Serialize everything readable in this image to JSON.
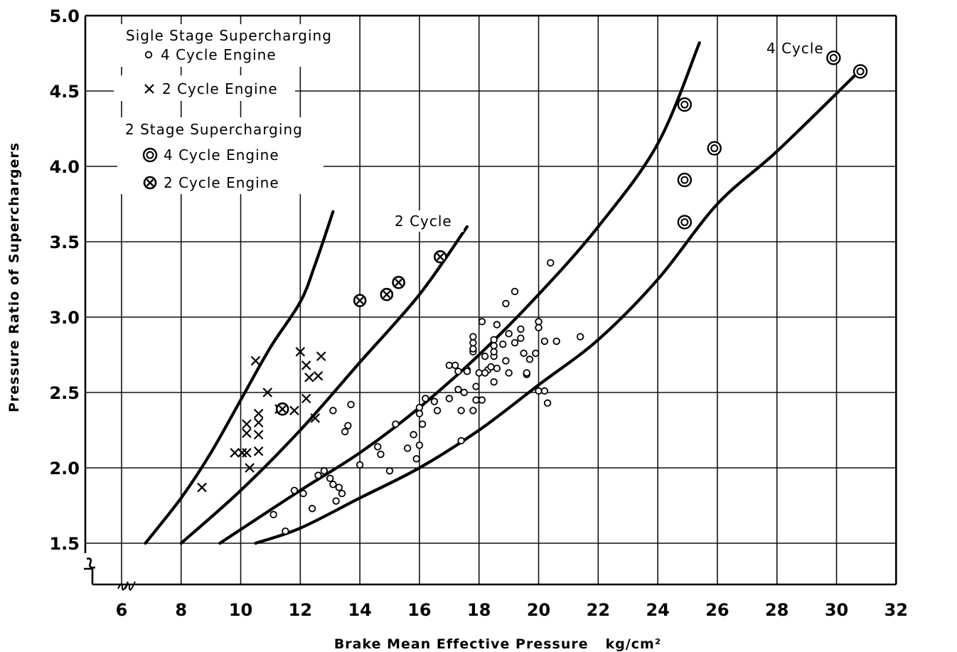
{
  "chart_data": {
    "type": "scatter",
    "xlabel": "Brake Mean Effective Pressure",
    "xunit": "kg/cm²",
    "ylabel": "Pressure Ratio of Superchargers",
    "xlim": [
      4,
      32
    ],
    "ylim": [
      1.2,
      5.0
    ],
    "x_ticks": [
      "6",
      "8",
      "10",
      "12",
      "14",
      "16",
      "18",
      "20",
      "22",
      "24",
      "26",
      "28",
      "30",
      "32"
    ],
    "y_ticks": [
      "1.5",
      "2.0",
      "2.5",
      "3.0",
      "3.5",
      "4.0",
      "4.5",
      "5.0"
    ],
    "grid": true,
    "axis_break": true,
    "legend": {
      "placement": "top-left",
      "title_single": "Sigle Stage Supercharging",
      "title_two": "2 Stage Supercharging",
      "entries": [
        {
          "marker": "circle",
          "label": "4 Cycle Engine"
        },
        {
          "marker": "cross",
          "label": "2 Cycle Engine"
        },
        {
          "marker": "double-circle",
          "label": "4 Cycle Engine"
        },
        {
          "marker": "circle-cross",
          "label": "2 Cycle Engine"
        }
      ]
    },
    "annotations": [
      {
        "text": "2 Cycle",
        "x": 14.8,
        "y": 3.6
      },
      {
        "text": "4 Cycle",
        "x": 26.8,
        "y": 4.8
      }
    ],
    "curves": [
      {
        "group": "2 Cycle",
        "points": [
          [
            6.8,
            1.5
          ],
          [
            8,
            1.8
          ],
          [
            9,
            2.1
          ],
          [
            10,
            2.45
          ],
          [
            11,
            2.8
          ],
          [
            12,
            3.1
          ],
          [
            12.5,
            3.35
          ],
          [
            13.1,
            3.7
          ]
        ]
      },
      {
        "group": "2 Cycle",
        "points": [
          [
            8,
            1.5
          ],
          [
            10,
            1.85
          ],
          [
            12,
            2.25
          ],
          [
            14,
            2.7
          ],
          [
            16,
            3.15
          ],
          [
            17.6,
            3.6
          ]
        ]
      },
      {
        "group": "4 Cycle",
        "points": [
          [
            9.3,
            1.5
          ],
          [
            12,
            1.85
          ],
          [
            14,
            2.1
          ],
          [
            16,
            2.4
          ],
          [
            18,
            2.75
          ],
          [
            20,
            3.15
          ],
          [
            22,
            3.6
          ],
          [
            24,
            4.15
          ],
          [
            25.4,
            4.82
          ]
        ]
      },
      {
        "group": "4 Cycle",
        "points": [
          [
            10.5,
            1.5
          ],
          [
            12,
            1.6
          ],
          [
            14,
            1.8
          ],
          [
            16,
            2.0
          ],
          [
            18,
            2.25
          ],
          [
            20,
            2.55
          ],
          [
            22,
            2.85
          ],
          [
            24,
            3.25
          ],
          [
            26,
            3.75
          ],
          [
            28,
            4.1
          ],
          [
            30.6,
            4.6
          ]
        ]
      }
    ],
    "series": [
      {
        "marker": "cross",
        "points": [
          [
            8.7,
            1.87
          ],
          [
            9.8,
            2.1
          ],
          [
            10.05,
            2.1
          ],
          [
            10.2,
            2.1
          ],
          [
            10.2,
            2.23
          ],
          [
            10.2,
            2.29
          ],
          [
            10.3,
            2.0
          ],
          [
            10.5,
            2.71
          ],
          [
            10.6,
            2.11
          ],
          [
            10.6,
            2.22
          ],
          [
            10.6,
            2.3
          ],
          [
            10.6,
            2.36
          ],
          [
            10.9,
            2.5
          ],
          [
            11.3,
            2.39
          ],
          [
            11.8,
            2.38
          ],
          [
            12.0,
            2.77
          ],
          [
            12.2,
            2.68
          ],
          [
            12.2,
            2.46
          ],
          [
            12.3,
            2.6
          ],
          [
            12.5,
            2.33
          ],
          [
            12.6,
            2.61
          ],
          [
            12.7,
            2.74
          ]
        ]
      },
      {
        "marker": "circle",
        "points": [
          [
            11.1,
            1.69
          ],
          [
            11.5,
            1.58
          ],
          [
            11.8,
            1.85
          ],
          [
            12.1,
            1.83
          ],
          [
            12.4,
            1.73
          ],
          [
            12.6,
            1.95
          ],
          [
            12.8,
            1.98
          ],
          [
            13.0,
            1.93
          ],
          [
            13.1,
            1.89
          ],
          [
            13.2,
            1.78
          ],
          [
            13.3,
            1.87
          ],
          [
            13.4,
            1.83
          ],
          [
            13.1,
            2.38
          ],
          [
            13.5,
            2.24
          ],
          [
            13.6,
            2.28
          ],
          [
            13.7,
            2.42
          ],
          [
            14.0,
            2.02
          ],
          [
            14.6,
            2.14
          ],
          [
            14.7,
            2.09
          ],
          [
            15.0,
            1.98
          ],
          [
            15.2,
            2.29
          ],
          [
            15.6,
            2.13
          ],
          [
            15.8,
            2.22
          ],
          [
            15.9,
            2.06
          ],
          [
            16.0,
            2.15
          ],
          [
            16.1,
            2.29
          ],
          [
            16.0,
            2.36
          ],
          [
            16.0,
            2.4
          ],
          [
            16.2,
            2.46
          ],
          [
            16.5,
            2.44
          ],
          [
            16.6,
            2.38
          ],
          [
            17.0,
            2.46
          ],
          [
            17.0,
            2.68
          ],
          [
            17.2,
            2.68
          ],
          [
            17.3,
            2.64
          ],
          [
            17.3,
            2.52
          ],
          [
            17.4,
            2.38
          ],
          [
            17.4,
            2.18
          ],
          [
            17.5,
            2.5
          ],
          [
            17.6,
            2.65
          ],
          [
            17.6,
            2.64
          ],
          [
            17.8,
            2.38
          ],
          [
            17.9,
            2.54
          ],
          [
            17.9,
            2.45
          ],
          [
            18.0,
            2.63
          ],
          [
            18.1,
            2.45
          ],
          [
            18.2,
            2.74
          ],
          [
            18.3,
            2.65
          ],
          [
            18.1,
            2.97
          ],
          [
            18.2,
            2.63
          ],
          [
            17.8,
            2.83
          ],
          [
            17.8,
            2.77
          ],
          [
            17.8,
            2.87
          ],
          [
            17.8,
            2.79
          ],
          [
            18.4,
            2.67
          ],
          [
            18.5,
            2.57
          ],
          [
            18.5,
            2.74
          ],
          [
            18.5,
            2.77
          ],
          [
            18.5,
            2.81
          ],
          [
            18.5,
            2.85
          ],
          [
            18.6,
            2.95
          ],
          [
            18.6,
            2.66
          ],
          [
            18.8,
            2.82
          ],
          [
            18.9,
            3.09
          ],
          [
            18.9,
            2.71
          ],
          [
            19.0,
            2.89
          ],
          [
            19.0,
            2.63
          ],
          [
            19.2,
            2.83
          ],
          [
            19.2,
            3.17
          ],
          [
            19.4,
            2.92
          ],
          [
            19.4,
            2.86
          ],
          [
            19.5,
            2.76
          ],
          [
            19.6,
            2.62
          ],
          [
            19.6,
            2.63
          ],
          [
            19.7,
            2.72
          ],
          [
            19.9,
            2.76
          ],
          [
            20.0,
            2.97
          ],
          [
            20.0,
            2.93
          ],
          [
            20.0,
            2.51
          ],
          [
            20.2,
            2.51
          ],
          [
            20.2,
            2.84
          ],
          [
            20.3,
            2.43
          ],
          [
            20.4,
            3.36
          ],
          [
            20.6,
            2.84
          ],
          [
            21.4,
            2.87
          ]
        ]
      },
      {
        "marker": "double-circle",
        "points": [
          [
            24.9,
            4.41
          ],
          [
            24.9,
            3.91
          ],
          [
            24.9,
            3.63
          ],
          [
            25.9,
            4.12
          ],
          [
            29.9,
            4.72
          ],
          [
            30.8,
            4.63
          ]
        ]
      },
      {
        "marker": "circle-cross",
        "points": [
          [
            11.4,
            2.39
          ],
          [
            14.0,
            3.11
          ],
          [
            14.9,
            3.15
          ],
          [
            15.3,
            3.23
          ],
          [
            16.7,
            3.4
          ]
        ]
      }
    ]
  }
}
